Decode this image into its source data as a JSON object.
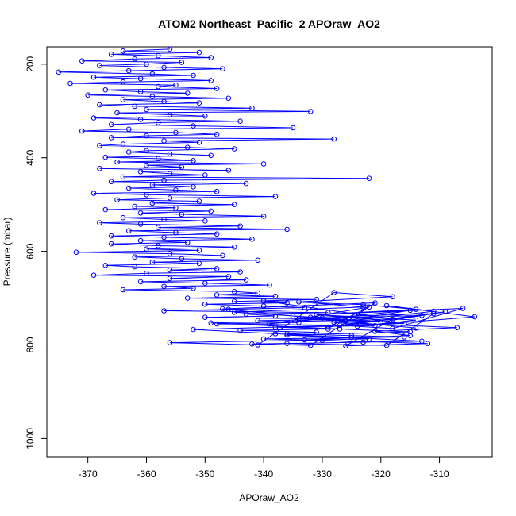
{
  "chart_data": {
    "type": "scatter",
    "title": "ATOM2 Northeast_Pacific_2 APOraw_AO2",
    "xlabel": "APOraw_AO2",
    "ylabel": "Pressure (mbar)",
    "xlim": [
      -377,
      -301
    ],
    "ylim": [
      1040,
      163
    ],
    "y_reversed": true,
    "x_ticks": [
      -370,
      -360,
      -350,
      -340,
      -330,
      -320,
      -310
    ],
    "y_ticks": [
      200,
      400,
      600,
      800,
      1000
    ],
    "grid": false,
    "legend": "none",
    "series": [
      {
        "color": "#0000ff",
        "marker": "open-circle",
        "connected": true,
        "x": [
          -356,
          -364,
          -351,
          -366,
          -358,
          -349,
          -362,
          -371,
          -354,
          -360,
          -368,
          -357,
          -347,
          -363,
          -375,
          -359,
          -352,
          -369,
          -361,
          -349,
          -364,
          -373,
          -355,
          -358,
          -348,
          -367,
          -361,
          -353,
          -370,
          -359,
          -346,
          -364,
          -357,
          -351,
          -368,
          -362,
          -342,
          -360,
          -332,
          -365,
          -356,
          -350,
          -369,
          -361,
          -344,
          -358,
          -366,
          -352,
          -335,
          -363,
          -371,
          -355,
          -348,
          -360,
          -366,
          -328,
          -357,
          -351,
          -364,
          -368,
          -353,
          -345,
          -360,
          -363,
          -356,
          -349,
          -367,
          -358,
          -352,
          -365,
          -340,
          -360,
          -354,
          -368,
          -346,
          -361,
          -356,
          -350,
          -364,
          -322,
          -357,
          -366,
          -343,
          -359,
          -352,
          -363,
          -355,
          -348,
          -369,
          -360,
          -338,
          -356,
          -365,
          -351,
          -359,
          -345,
          -362,
          -355,
          -367,
          -349,
          -361,
          -354,
          -340,
          -364,
          -357,
          -350,
          -368,
          -361,
          -344,
          -358,
          -336,
          -363,
          -355,
          -348,
          -366,
          -357,
          -342,
          -361,
          -353,
          -366,
          -358,
          -345,
          -360,
          -351,
          -372,
          -356,
          -347,
          -362,
          -354,
          -341,
          -359,
          -351,
          -367,
          -362,
          -348,
          -356,
          -344,
          -360,
          -369,
          -346,
          -356,
          -343,
          -361,
          -350,
          -339,
          -357,
          -352,
          -364,
          -345,
          -341,
          -348,
          -338,
          -353,
          -331,
          -345,
          -336,
          -350,
          -340,
          -333,
          -346,
          -357,
          -329,
          -343,
          -338,
          -350,
          -326,
          -341,
          -334,
          -348,
          -321,
          -338,
          -329,
          -344,
          -331,
          -336,
          -325,
          -316,
          -340,
          -330,
          -323,
          -336,
          -319,
          -311,
          -332,
          -326,
          -315,
          -339,
          -322,
          -329,
          -313,
          -334,
          -320,
          -309,
          -327,
          -318,
          -306,
          -331,
          -314,
          -324,
          -304,
          -319,
          -311,
          -328,
          -307,
          -321,
          -315,
          -333,
          -312,
          -326,
          -318,
          -340,
          -323,
          -314,
          -331,
          -320,
          -349,
          -327,
          -315,
          -336,
          -322,
          -356,
          -341,
          -328,
          -318,
          -334,
          -323,
          -345,
          -330,
          -316,
          -352,
          -338,
          -325,
          -313,
          -342,
          -332,
          -321,
          -347,
          -335,
          -326,
          -314
        ],
        "y": [
          168,
          172,
          175,
          179,
          182,
          186,
          189,
          193,
          196,
          200,
          203,
          207,
          210,
          214,
          217,
          221,
          224,
          228,
          231,
          235,
          238,
          241,
          245,
          248,
          252,
          255,
          259,
          262,
          266,
          269,
          273,
          276,
          280,
          283,
          287,
          290,
          294,
          297,
          301,
          304,
          308,
          311,
          315,
          318,
          322,
          325,
          329,
          332,
          336,
          339,
          343,
          346,
          350,
          353,
          357,
          360,
          364,
          367,
          371,
          374,
          378,
          381,
          385,
          388,
          392,
          395,
          399,
          402,
          406,
          409,
          413,
          416,
          420,
          423,
          427,
          430,
          434,
          437,
          441,
          444,
          448,
          451,
          455,
          458,
          462,
          465,
          469,
          472,
          476,
          479,
          483,
          486,
          490,
          493,
          497,
          500,
          504,
          507,
          511,
          514,
          518,
          521,
          525,
          528,
          532,
          535,
          539,
          542,
          546,
          549,
          553,
          556,
          560,
          563,
          567,
          570,
          574,
          577,
          581,
          584,
          588,
          591,
          595,
          598,
          602,
          605,
          609,
          612,
          616,
          619,
          623,
          626,
          630,
          633,
          637,
          640,
          644,
          647,
          651,
          654,
          658,
          661,
          665,
          668,
          672,
          675,
          679,
          682,
          686,
          689,
          693,
          696,
          700,
          703,
          707,
          710,
          713,
          717,
          720,
          724,
          727,
          731,
          734,
          738,
          741,
          745,
          748,
          752,
          755,
          759,
          762,
          766,
          769,
          773,
          776,
          780,
          783,
          787,
          790,
          794,
          797,
          801,
          733,
          741,
          748,
          726,
          755,
          719,
          762,
          737,
          744,
          751,
          729,
          758,
          765,
          722,
          735,
          747,
          760,
          740,
          716,
          728,
          752,
          763,
          771,
          780,
          789,
          797,
          802,
          745,
          706,
          714,
          724,
          735,
          746,
          753,
          766,
          772,
          779,
          787,
          795,
          800,
          688,
          697,
          708,
          719,
          730,
          742,
          754,
          767,
          776,
          784,
          792,
          798,
          801,
          710,
          723,
          738,
          750,
          764
        ]
      }
    ]
  }
}
